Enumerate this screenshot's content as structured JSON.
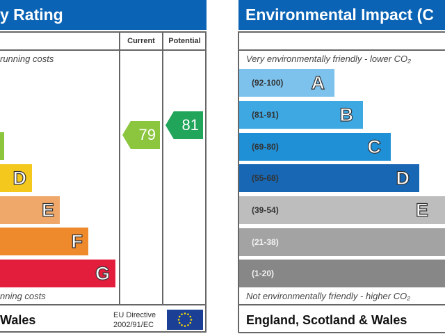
{
  "energy": {
    "title": "y Rating",
    "col_current": "Current",
    "col_potential": "Potential",
    "top_text": "running costs",
    "bottom_text": "nning costs",
    "footer": "Wales",
    "eu_line1": "EU Directive",
    "eu_line2": "2002/91/EC",
    "eu_flag_icon": "eu-flag",
    "current": "79",
    "potential": "81",
    "bands": [
      {
        "letter": "",
        "color": "#8cc63f"
      },
      {
        "letter": "D",
        "color": "#f4c81c"
      },
      {
        "letter": "E",
        "color": "#f0a86a"
      },
      {
        "letter": "F",
        "color": "#ee8a2c"
      },
      {
        "letter": "G",
        "color": "#e31d3c"
      }
    ],
    "current_color": "#8cc63f",
    "potential_color": "#21a55a"
  },
  "environment": {
    "title": "Environmental Impact (C",
    "top_text": "Very environmentally friendly - lower CO₂",
    "bottom_text": "Not environmentally friendly - higher CO₂",
    "footer": "England, Scotland & Wales",
    "bands": [
      {
        "range": "(92-100)",
        "letter": "A",
        "color": "#7cc2ec"
      },
      {
        "range": "(81-91)",
        "letter": "B",
        "color": "#3ea8e2"
      },
      {
        "range": "(69-80)",
        "letter": "C",
        "color": "#1f8fd6"
      },
      {
        "range": "(55-68)",
        "letter": "D",
        "color": "#1767b4"
      },
      {
        "range": "(39-54)",
        "letter": "E",
        "color": "#bdbdbd"
      },
      {
        "range": "(21-38)",
        "letter": "",
        "color": "#a3a3a3"
      },
      {
        "range": "(1-20)",
        "letter": "",
        "color": "#878787"
      }
    ]
  },
  "chart_data": {
    "type": "bar",
    "categories": [
      "A",
      "B",
      "C",
      "D",
      "E",
      "F",
      "G"
    ],
    "energy_current": 79,
    "energy_potential": 81,
    "environment_ranges": [
      "(92-100)",
      "(81-91)",
      "(69-80)",
      "(55-68)",
      "(39-54)",
      "(21-38)",
      "(1-20)"
    ]
  }
}
